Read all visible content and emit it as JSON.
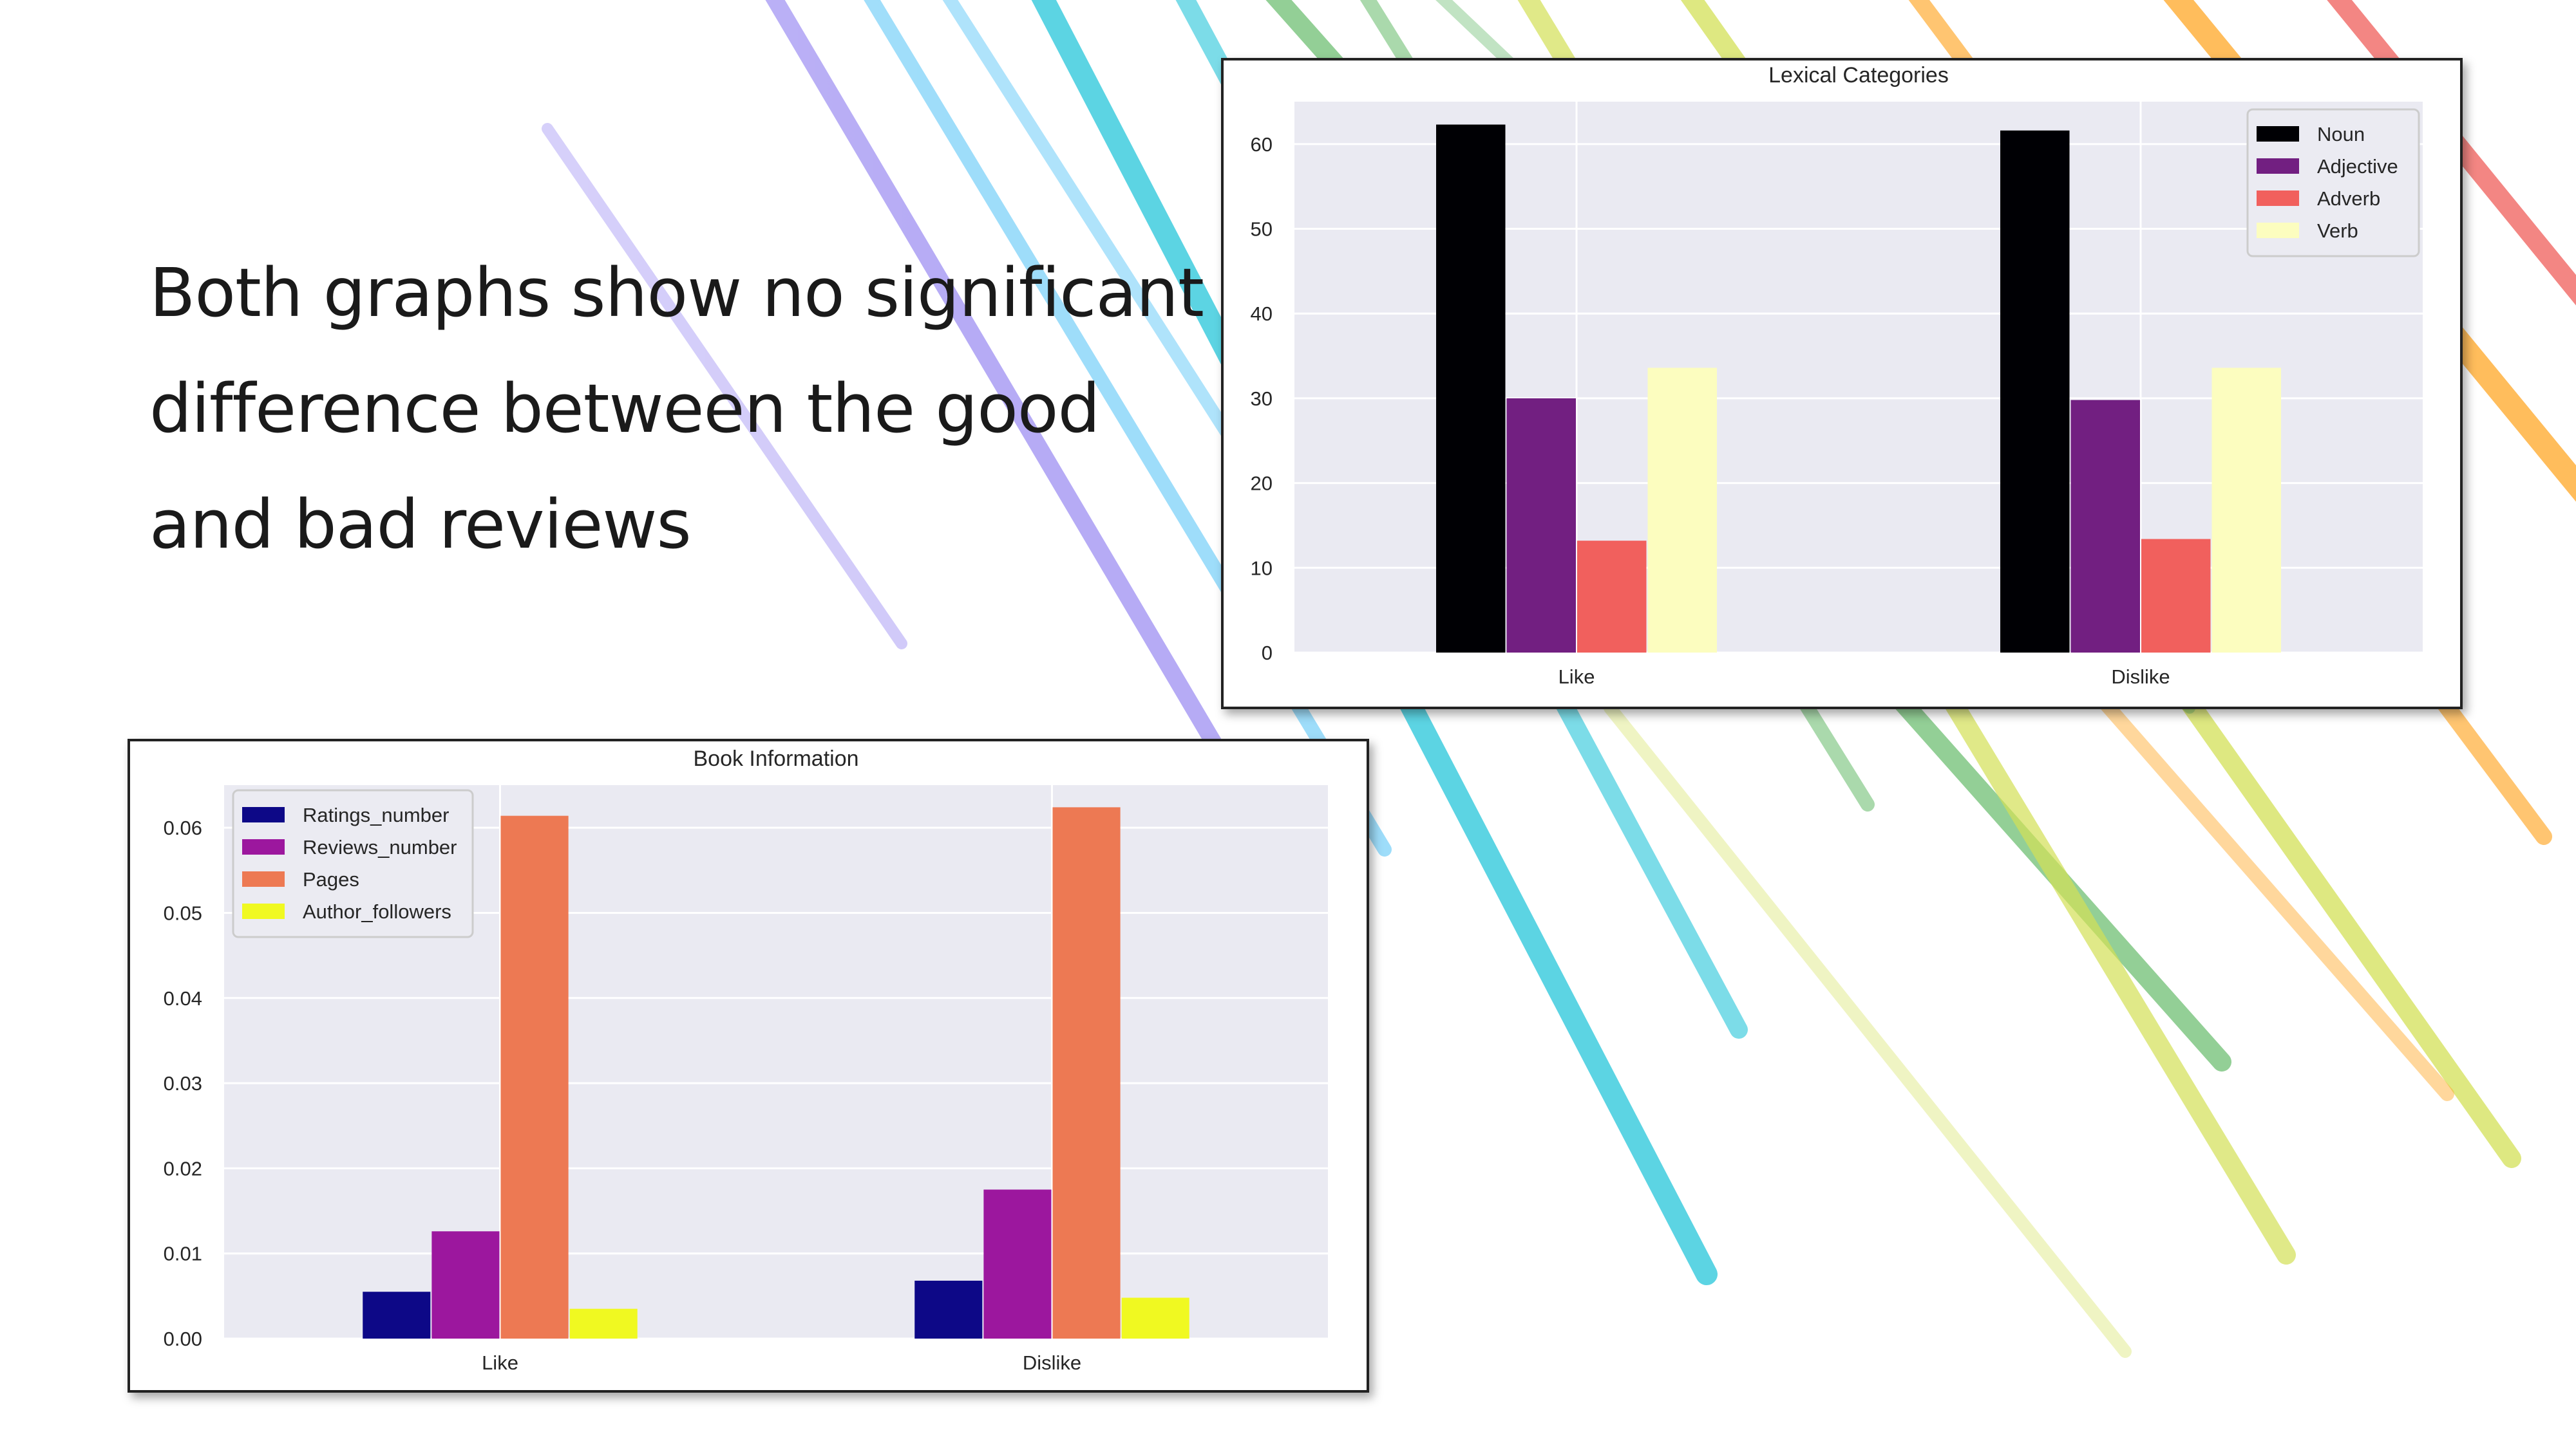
{
  "slide": {
    "text_lines": [
      "Both graphs show no significant",
      "difference between the good",
      "and bad reviews"
    ]
  },
  "colors": {
    "plot_background": "#eaeaf2",
    "grid": "#ffffff",
    "decorative_stripes": [
      "#7b68ee",
      "#4fc3f7",
      "#26c6da",
      "#66bb6a",
      "#d4e157",
      "#ffa726",
      "#ef5350"
    ]
  },
  "chart_data": [
    {
      "type": "bar",
      "title": "Lexical Categories",
      "categories": [
        "Like",
        "Dislike"
      ],
      "series": [
        {
          "name": "Noun",
          "color": "#000004",
          "values": [
            62.3,
            61.6
          ]
        },
        {
          "name": "Adjective",
          "color": "#721f81",
          "values": [
            30.0,
            29.8
          ]
        },
        {
          "name": "Adverb",
          "color": "#f1605d",
          "values": [
            13.2,
            13.4
          ]
        },
        {
          "name": "Verb",
          "color": "#fcfdbf",
          "values": [
            33.6,
            33.6
          ]
        }
      ],
      "ylim": [
        0,
        65
      ],
      "yticks": [
        "0",
        "10",
        "20",
        "30",
        "40",
        "50",
        "60"
      ],
      "ytick_values": [
        0,
        10,
        20,
        30,
        40,
        50,
        60
      ],
      "grid": true,
      "legend": "upper right"
    },
    {
      "type": "bar",
      "title": "Book Information",
      "categories": [
        "Like",
        "Dislike"
      ],
      "series": [
        {
          "name": "Ratings_number",
          "color": "#0d0887",
          "values": [
            0.0055,
            0.0068
          ]
        },
        {
          "name": "Reviews_number",
          "color": "#9c179e",
          "values": [
            0.0126,
            0.0175
          ]
        },
        {
          "name": "Pages",
          "color": "#ed7953",
          "values": [
            0.0614,
            0.0624
          ]
        },
        {
          "name": "Author_followers",
          "color": "#f0f921",
          "values": [
            0.0035,
            0.0048
          ]
        }
      ],
      "ylim": [
        0,
        0.065
      ],
      "yticks": [
        "0.00",
        "0.01",
        "0.02",
        "0.03",
        "0.04",
        "0.05",
        "0.06"
      ],
      "ytick_values": [
        0,
        0.01,
        0.02,
        0.03,
        0.04,
        0.05,
        0.06
      ],
      "grid": true,
      "legend": "upper left"
    }
  ]
}
